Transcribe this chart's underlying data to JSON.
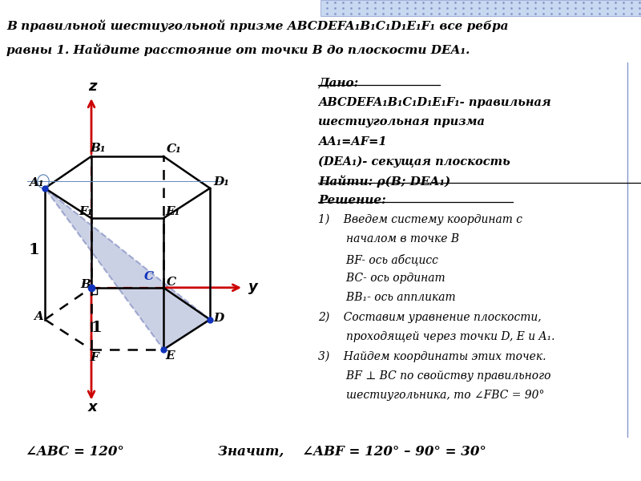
{
  "title1": "В правильной шестиугольной призме ABCDEFA₁B₁C₁D₁E₁F₁ все ребра",
  "title2": "равны 1. Найдите расстояние от точки B до плоскости DEA₁.",
  "bg_top_color": "#c8d8f0",
  "blue_fill": "#7788bb",
  "blue_fill_alpha": 0.38,
  "axis_color": "#cc0000",
  "dot_color": "#1133bb",
  "black": "#000000",
  "dado_lines": [
    [
      "Дано:",
      true,
      true,
      true
    ],
    [
      "ABCDEFA₁B₁C₁D₁E₁F₁- правильная",
      true,
      true,
      false
    ],
    [
      "шестиугольная призма",
      true,
      true,
      false
    ],
    [
      "AA₁=AF=1",
      true,
      true,
      false
    ],
    [
      "(DEA₁)- секущая плоскость",
      true,
      true,
      false
    ],
    [
      "Найти: ρ(B; DEA₁)",
      true,
      true,
      true
    ],
    [
      "Решение:",
      true,
      true,
      true
    ],
    [
      "1)    Введем систему координат с",
      false,
      true,
      false
    ],
    [
      "        началом в точке B",
      false,
      true,
      false
    ],
    [
      "        BF- ось абсцисс",
      false,
      true,
      false
    ],
    [
      "        BC- ось ординат",
      false,
      true,
      false
    ],
    [
      "        BB₁- ось аппликат",
      false,
      true,
      false
    ],
    [
      "2)    Составим уравнение плоскости,",
      false,
      true,
      false
    ],
    [
      "        проходящей через точки D, E и A₁.",
      false,
      true,
      false
    ],
    [
      "3)    Найдем координаты этих точек.",
      false,
      true,
      false
    ],
    [
      "        BF ⊥ BC по свойству правильного",
      false,
      true,
      false
    ],
    [
      "        шестиугольника, то ∠FBC = 90°",
      false,
      true,
      false
    ]
  ],
  "formula_left": "∠ABC = 120°",
  "formula_right": "Значит,    ∠ABF = 120° – 90° = 30°"
}
